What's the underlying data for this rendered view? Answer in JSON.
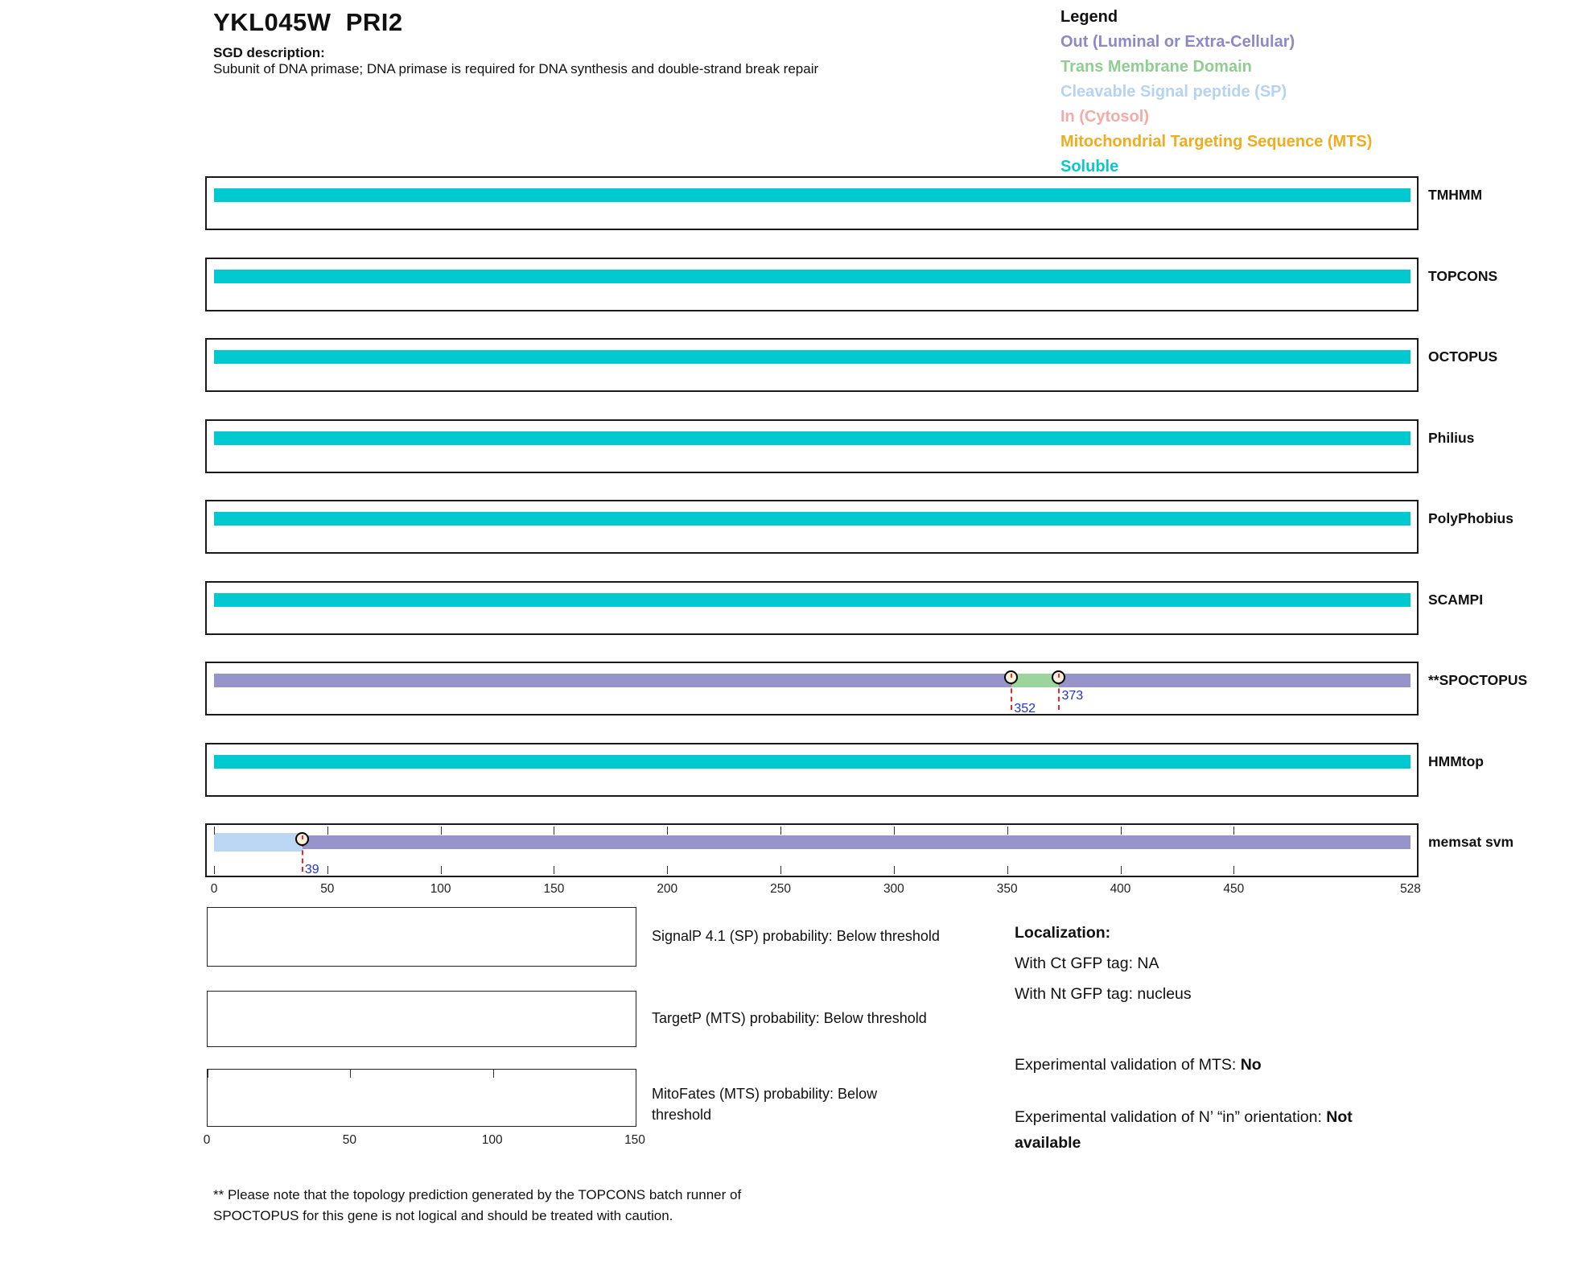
{
  "header": {
    "title": "YKL045W  PRI2",
    "sgd_label": "SGD description:",
    "sgd_description": "Subunit of DNA primase; DNA primase is required for DNA synthesis and double-strand break repair"
  },
  "legend": {
    "title": "Legend",
    "items": [
      {
        "key": "out",
        "label": "Out (Luminal or Extra-Cellular)",
        "color": "#8B89C6"
      },
      {
        "key": "tm",
        "label": "Trans Membrane Domain",
        "color": "#8FCE90"
      },
      {
        "key": "sp",
        "label": "Cleavable Signal peptide (SP)",
        "color": "#B5D3F2"
      },
      {
        "key": "in",
        "label": "In (Cytosol)",
        "color": "#F2ACA8"
      },
      {
        "key": "mts",
        "label": "Mitochondrial Targeting Sequence (MTS)",
        "color": "#F0AC1E"
      },
      {
        "key": "soluble",
        "label": "Soluble",
        "color": "#0BC6CE"
      }
    ]
  },
  "colors": {
    "soluble": "#00C9CF",
    "out": "#9694CB",
    "tm": "#9BD49D",
    "sp": "#BCD7F3",
    "marker_line": "#E82A2A",
    "marker_label": "#2432C8"
  },
  "chart_data": {
    "type": "bar",
    "orientation": "horizontal",
    "title": "Topology predictions for YKL045W PRI2",
    "x_axis": {
      "min": 0,
      "max": 528,
      "tick_labels": [
        0,
        50,
        100,
        150,
        200,
        250,
        300,
        350,
        400,
        450,
        528
      ]
    },
    "legend_position": "top-right",
    "tracks": [
      {
        "name": "TMHMM",
        "segments": [
          {
            "type": "soluble",
            "start": 0,
            "end": 528
          }
        ],
        "markers": []
      },
      {
        "name": "TOPCONS",
        "segments": [
          {
            "type": "soluble",
            "start": 0,
            "end": 528
          }
        ],
        "markers": []
      },
      {
        "name": "OCTOPUS",
        "segments": [
          {
            "type": "soluble",
            "start": 0,
            "end": 528
          }
        ],
        "markers": []
      },
      {
        "name": "Philius",
        "segments": [
          {
            "type": "soluble",
            "start": 0,
            "end": 528
          }
        ],
        "markers": []
      },
      {
        "name": "PolyPhobius",
        "segments": [
          {
            "type": "soluble",
            "start": 0,
            "end": 528
          }
        ],
        "markers": []
      },
      {
        "name": "SCAMPI",
        "segments": [
          {
            "type": "soluble",
            "start": 0,
            "end": 528
          }
        ],
        "markers": []
      },
      {
        "name": "**SPOCTOPUS",
        "segments": [
          {
            "type": "out",
            "start": 0,
            "end": 528
          },
          {
            "type": "tm",
            "start": 352,
            "end": 373
          }
        ],
        "markers": [
          {
            "pos": 352,
            "label": "352",
            "label_dy": 48
          },
          {
            "pos": 373,
            "label": "373",
            "label_dy": 32
          }
        ]
      },
      {
        "name": "HMMtop",
        "segments": [
          {
            "type": "soluble",
            "start": 0,
            "end": 528
          }
        ],
        "markers": []
      },
      {
        "name": "memsat svm",
        "segments": [
          {
            "type": "sp",
            "start": 0,
            "end": 39
          },
          {
            "type": "out",
            "start": 39,
            "end": 528
          }
        ],
        "markers": [
          {
            "pos": 39,
            "label": "39",
            "label_dy": 47
          }
        ],
        "has_ruler": true,
        "ruler_ticks": [
          0,
          50,
          100,
          150,
          200,
          250,
          300,
          350,
          400,
          450
        ]
      }
    ]
  },
  "probability_plots": [
    {
      "id": "signalp",
      "caption": "SignalP 4.1 (SP) probability: Below threshold"
    },
    {
      "id": "targetp",
      "caption": "TargetP (MTS) probability: Below threshold"
    },
    {
      "id": "mitofates",
      "caption": "MitoFates (MTS) probability: Below threshold",
      "x_axis": {
        "min": 0,
        "max": 150,
        "tick_labels": [
          0,
          50,
          100,
          150
        ],
        "top_ticks": [
          0,
          50,
          100
        ]
      }
    }
  ],
  "localization": {
    "title": "Localization:",
    "ct_line": "With Ct GFP tag: NA",
    "nt_line": "With Nt GFP tag: nucleus",
    "mts_label": "Experimental validation of MTS: ",
    "mts_value": "No",
    "orientation_label": "Experimental validation of N’ “in” orientation: ",
    "orientation_value": "Not available"
  },
  "footnote": "** Please note that the topology prediction generated by the TOPCONS batch runner of SPOCTOPUS for this gene is not logical and should be treated with caution."
}
